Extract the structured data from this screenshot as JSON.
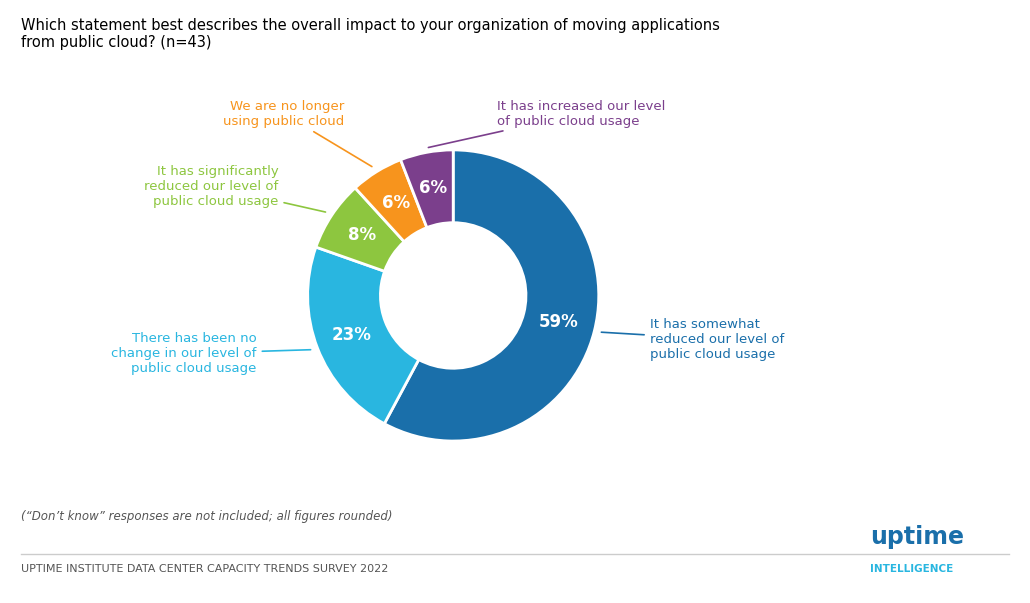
{
  "chart_data": {
    "type": "pie",
    "title": "Which statement best describes the overall impact to your organization of moving applications\nfrom public cloud? (n=43)",
    "categories": [
      "It has somewhat\nreduced our level of\npublic cloud usage",
      "There has been no\nchange in our level of\npublic cloud usage",
      "It has significantly\nreduced our level of\npublic cloud usage",
      "We are no longer\nusing public cloud",
      "It has increased our level\nof public cloud usage"
    ],
    "values": [
      59,
      23,
      8,
      6,
      6
    ],
    "value_labels": [
      "59%",
      "23%",
      "8%",
      "6%",
      "6%"
    ],
    "colors": [
      "#1a6faa",
      "#29b6e0",
      "#8dc63f",
      "#f7941d",
      "#7b3f8c"
    ],
    "data_labels": true,
    "annotations": [
      "(“Don’t know” responses are not included; all figures rounded)",
      "UPTIME INSTITUTE DATA CENTER CAPACITY TRENDS SURVEY 2022",
      "uptime",
      "INTELLIGENCE"
    ]
  }
}
